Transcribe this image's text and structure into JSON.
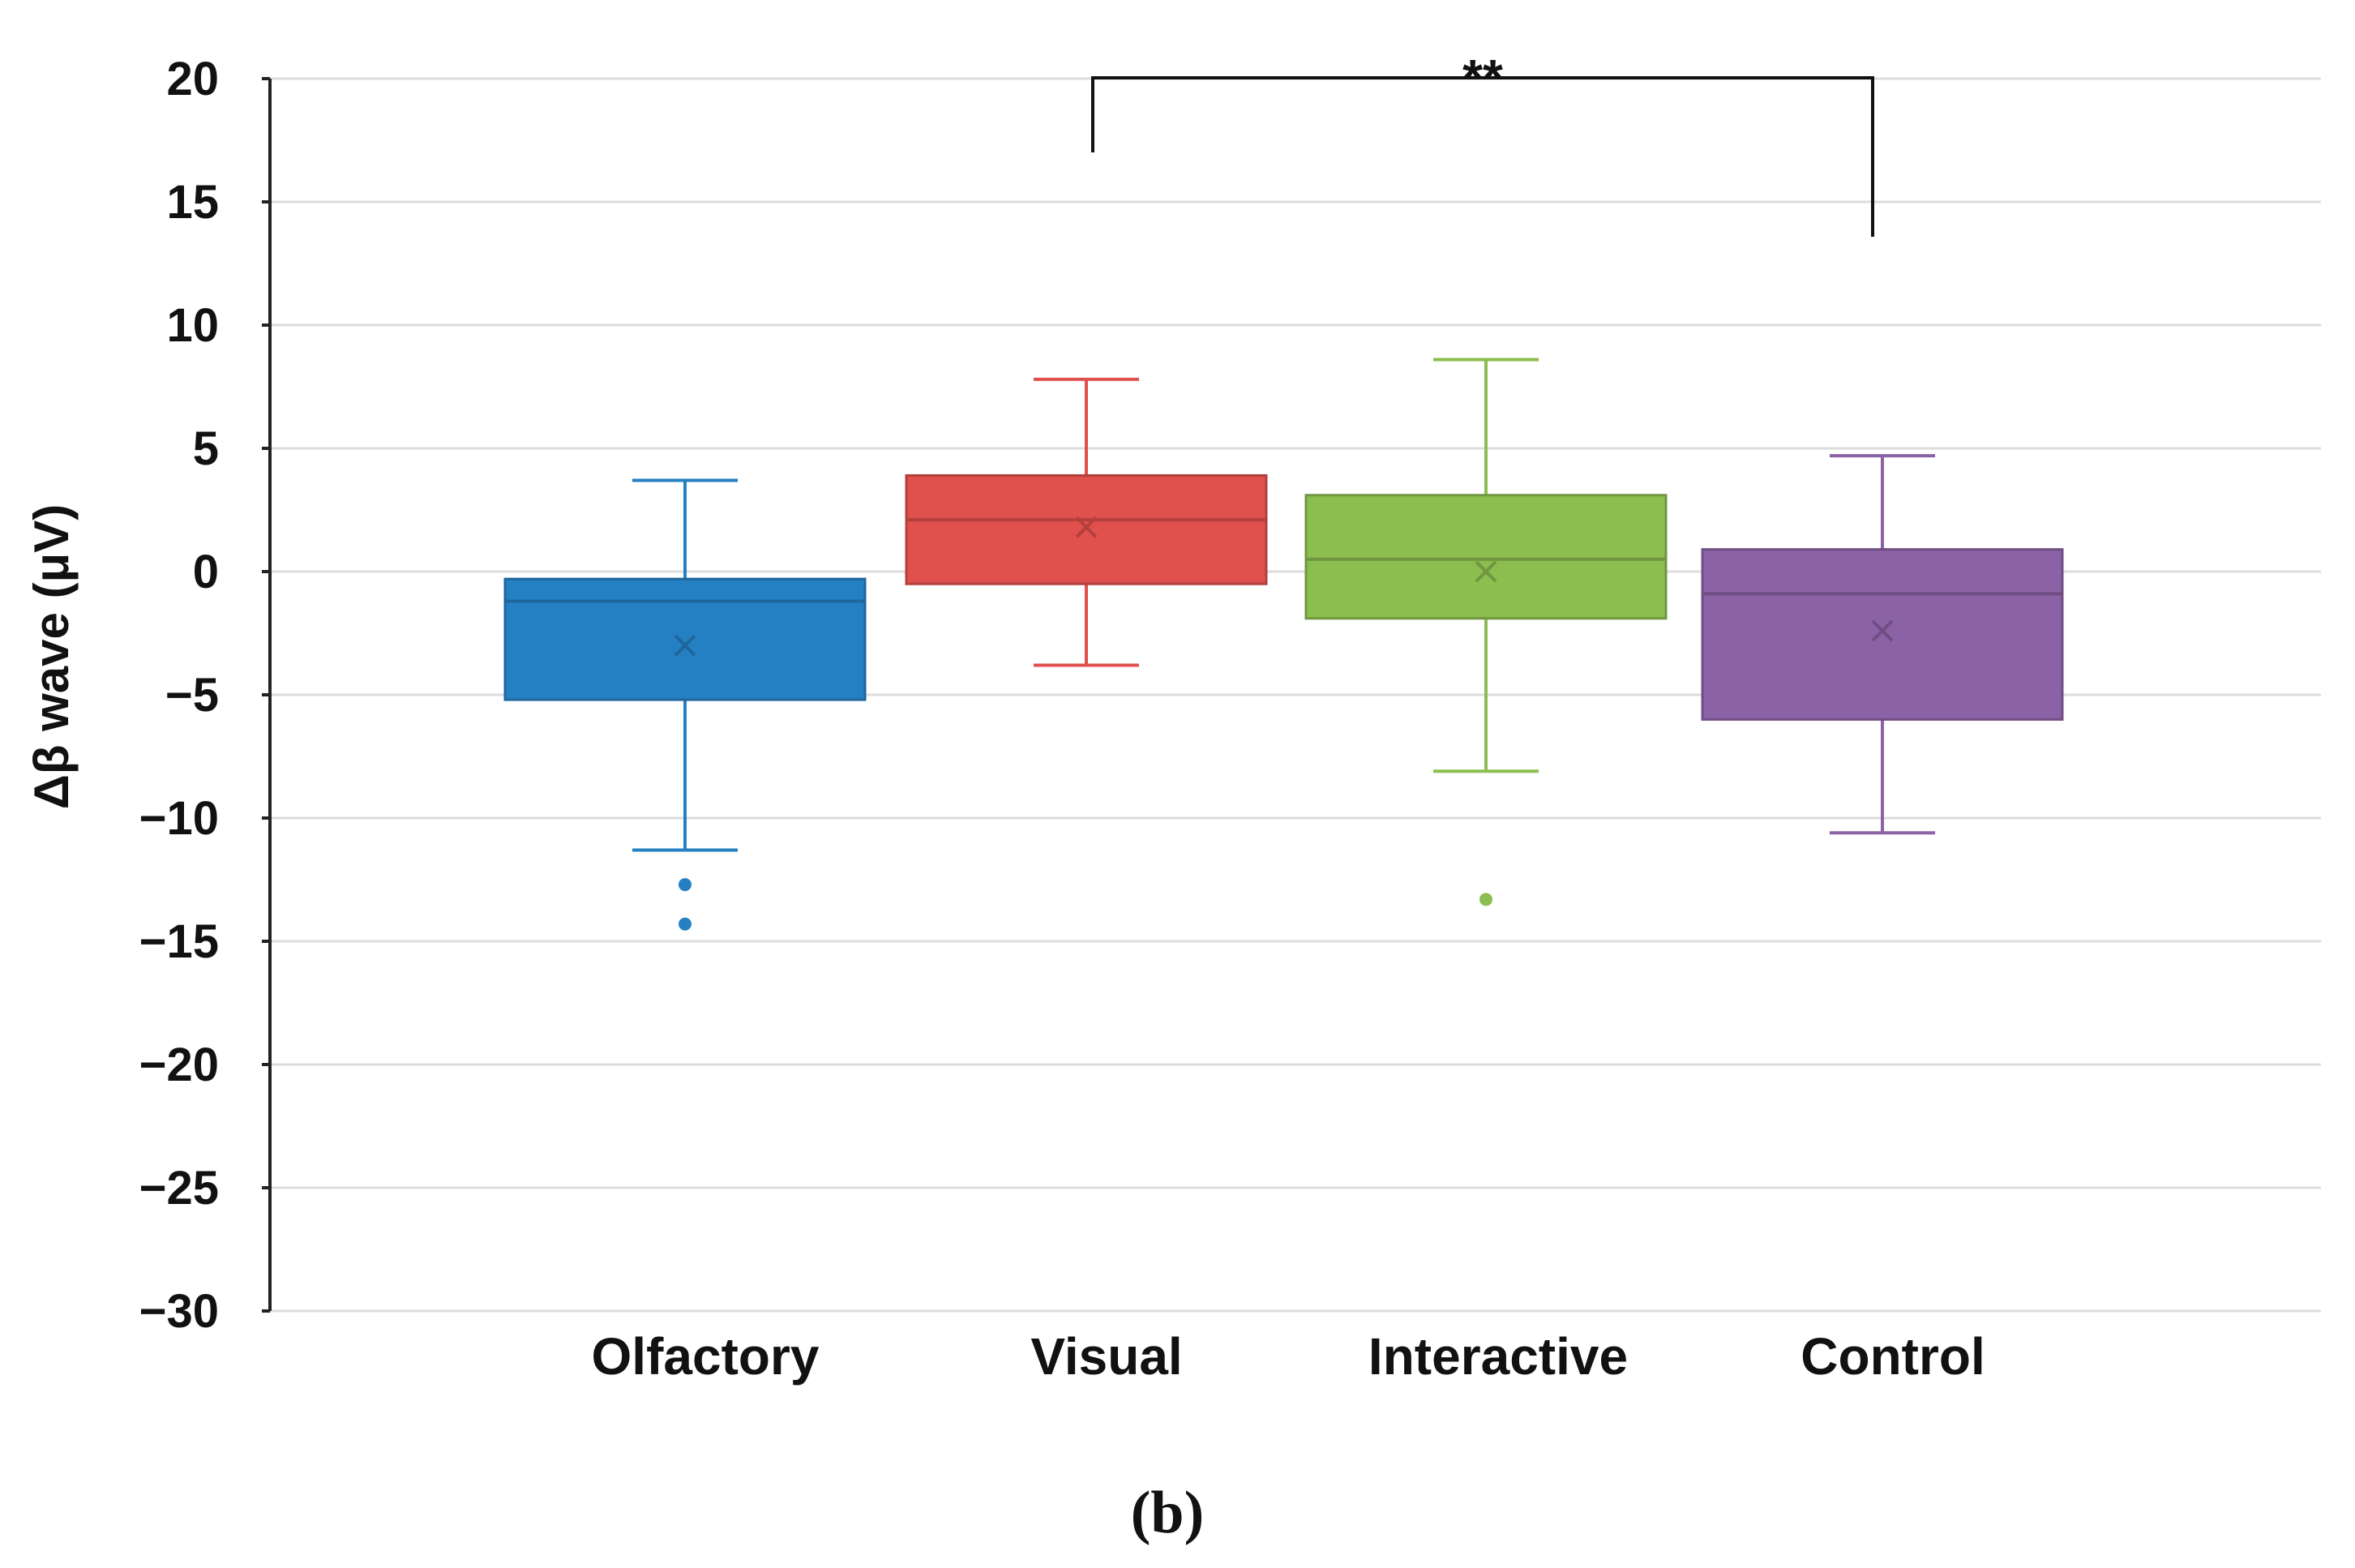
{
  "chart_data": {
    "type": "box",
    "ylabel": "Δβ wave  (μV)",
    "ylim": [
      -30,
      20
    ],
    "yticks": [
      20,
      15,
      10,
      5,
      0,
      -5,
      -10,
      -15,
      -20,
      -25,
      -30
    ],
    "ytick_labels": [
      "20",
      "15",
      "10",
      "5",
      "0",
      "−5",
      "−10",
      "−15",
      "−20",
      "−25",
      "−30"
    ],
    "grid": true,
    "categories": [
      "Olfactory",
      "Visual",
      "Interactive",
      "Control"
    ],
    "series": [
      {
        "name": "Olfactory",
        "color": "#2580c3",
        "whisker_low": -11.3,
        "q1": -5.2,
        "median": -1.2,
        "q3": -0.3,
        "whisker_high": 3.7,
        "mean": -3.0,
        "outliers": [
          -12.7,
          -14.3
        ]
      },
      {
        "name": "Visual",
        "color": "#e0504c",
        "whisker_low": -3.8,
        "q1": -0.5,
        "median": 2.1,
        "q3": 3.9,
        "whisker_high": 7.8,
        "mean": 1.8,
        "outliers": []
      },
      {
        "name": "Interactive",
        "color": "#8cbd4f",
        "whisker_low": -8.1,
        "q1": -1.9,
        "median": 0.5,
        "q3": 3.1,
        "whisker_high": 8.6,
        "mean": 0.0,
        "outliers": [
          -13.3
        ]
      },
      {
        "name": "Control",
        "color": "#8b62a5",
        "whisker_low": -10.6,
        "q1": -6.0,
        "median": -0.9,
        "q3": 0.9,
        "whisker_high": 4.7,
        "mean": -2.4,
        "outliers": []
      }
    ],
    "annotations": [
      {
        "text": "**",
        "between": [
          "Visual",
          "Control"
        ]
      }
    ],
    "panel_label": "(b)"
  }
}
